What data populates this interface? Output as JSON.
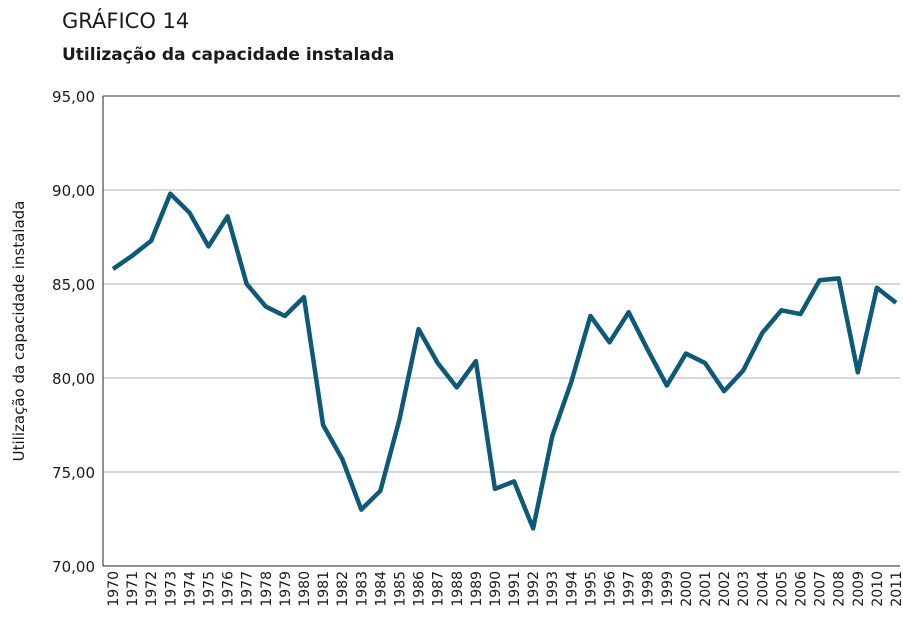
{
  "chart_data": {
    "type": "line",
    "title": "GRÁFICO 14",
    "subtitle": "Utilização da capacidade instalada",
    "y_label": "Utilização da capacidade instalada",
    "categories": [
      "1970",
      "1971",
      "1972",
      "1973",
      "1974",
      "1975",
      "1976",
      "1977",
      "1978",
      "1979",
      "1980",
      "1981",
      "1982",
      "1983",
      "1984",
      "1985",
      "1986",
      "1987",
      "1988",
      "1989",
      "1990",
      "1991",
      "1992",
      "1993",
      "1994",
      "1995",
      "1996",
      "1997",
      "1998",
      "1999",
      "2000",
      "2001",
      "2002",
      "2003",
      "2004",
      "2005",
      "2006",
      "2007",
      "2008",
      "2009",
      "2010",
      "2011"
    ],
    "values": [
      85.8,
      86.5,
      87.3,
      89.8,
      88.8,
      87.0,
      88.6,
      85.0,
      83.8,
      83.3,
      84.3,
      77.5,
      75.7,
      73.0,
      74.0,
      77.8,
      82.6,
      80.8,
      79.5,
      80.9,
      74.1,
      74.5,
      72.0,
      76.9,
      79.8,
      83.3,
      81.9,
      83.5,
      81.5,
      79.6,
      81.3,
      80.8,
      79.3,
      80.4,
      82.4,
      83.6,
      83.4,
      85.2,
      85.3,
      80.3,
      84.8,
      84.0
    ],
    "color": "#0e5878",
    "ylim": [
      70,
      95
    ],
    "yticks": [
      {
        "value": 70,
        "label": "70,00"
      },
      {
        "value": 75,
        "label": "75,00"
      },
      {
        "value": 80,
        "label": "80,00"
      },
      {
        "value": 85,
        "label": "85,00"
      },
      {
        "value": 90,
        "label": "90,00"
      },
      {
        "value": 95,
        "label": "95,00"
      }
    ],
    "grid": true
  }
}
